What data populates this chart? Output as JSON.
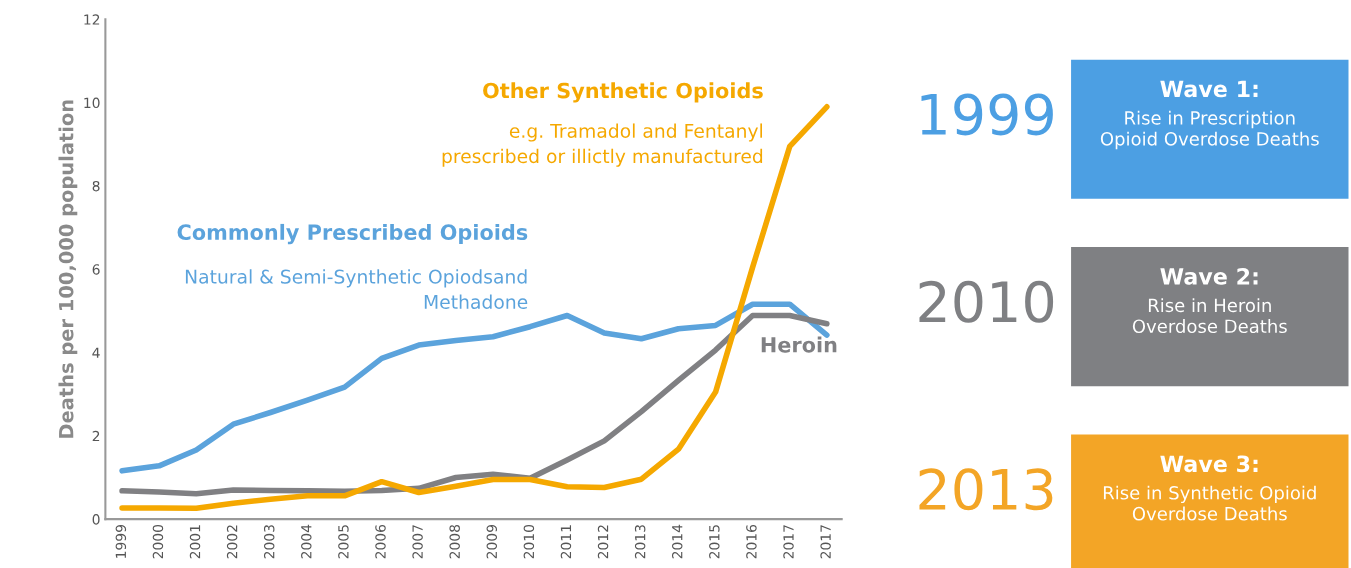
{
  "chart_data": [
    {
      "type": "line",
      "ylabel": "Deaths per 100,000 population",
      "categories": [
        "1999",
        "2000",
        "2001",
        "2002",
        "2003",
        "2004",
        "2005",
        "2006",
        "2007",
        "2008",
        "2009",
        "2010",
        "2011",
        "2012",
        "2013",
        "2014",
        "2015",
        "2016",
        "2017",
        "2017"
      ],
      "series": [
        {
          "name": "Commonly Prescribed Opioids",
          "color": "#5ba3dc",
          "values": [
            1.16,
            1.28,
            1.66,
            2.28,
            2.56,
            2.86,
            3.17,
            3.86,
            4.18,
            4.29,
            4.38,
            4.62,
            4.89,
            4.47,
            4.33,
            4.57,
            4.65,
            5.16,
            5.16,
            4.42
          ]
        },
        {
          "name": "Heroin",
          "color": "#808083",
          "values": [
            0.68,
            0.65,
            0.61,
            0.7,
            0.69,
            0.68,
            0.67,
            0.69,
            0.74,
            1.0,
            1.08,
            0.98,
            1.42,
            1.88,
            2.58,
            3.33,
            4.06,
            4.89,
            4.89,
            4.69
          ]
        },
        {
          "name": "Other Synthetic Opioids",
          "color": "#f5a800",
          "values": [
            0.27,
            0.27,
            0.26,
            0.38,
            0.48,
            0.56,
            0.56,
            0.9,
            0.64,
            0.79,
            0.95,
            0.95,
            0.78,
            0.76,
            0.96,
            1.68,
            3.05,
            6.05,
            8.95,
            9.9
          ]
        }
      ],
      "annotations": [
        "Natural & Semi-Synthetic Opiodsand\nMethadone",
        "e.g. Tramadol and Fentanyl\nprescribed or illictly manufactured"
      ],
      "ylim": [
        0,
        12
      ],
      "yticks": [
        0,
        2,
        4,
        6,
        8,
        10,
        12
      ],
      "grid": false,
      "legend": false,
      "marker": "none",
      "line_style": "solid"
    },
    {
      "type": "other",
      "annotations": [
        "1999",
        "Wave 1:",
        "Rise in Prescription\nOpioid Overdose Deaths",
        "2010",
        "Wave 2:",
        "Rise in Heroin\nOverdose Deaths",
        "2013",
        "Wave 3:",
        "Rise in Synthetic Opioid\nOverdose Deaths"
      ]
    }
  ]
}
